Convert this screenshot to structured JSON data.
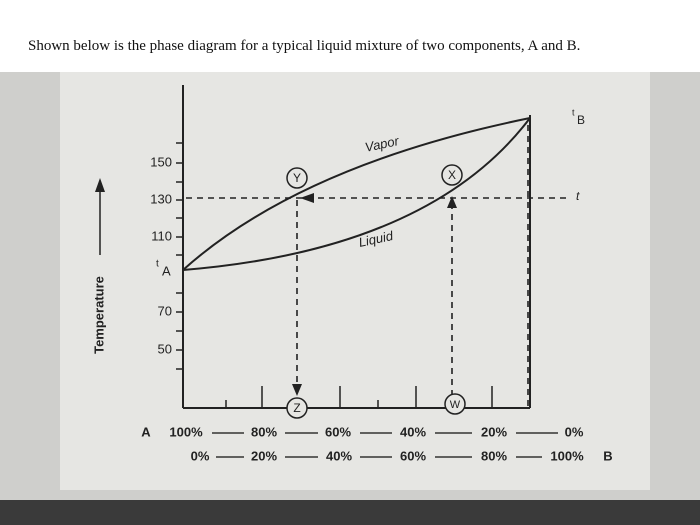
{
  "intro": "Shown below is the phase diagram for a typical liquid mixture of two components, A and B.",
  "diagram": {
    "y_axis_label": "Temperature",
    "y_ticks": [
      "150",
      "130",
      "110",
      "70",
      "50"
    ],
    "t_A": {
      "t": "t",
      "name": "A"
    },
    "t_B": {
      "t": "t",
      "name": "B"
    },
    "t_right": "t",
    "region_labels": {
      "vapor": "Vapor",
      "liquid": "Liquid"
    },
    "points": {
      "y": "Y",
      "x": "X",
      "z": "Z",
      "w": "W"
    },
    "composition_a": {
      "component": "A",
      "values": [
        "100%",
        "80%",
        "60%",
        "40%",
        "20%",
        "0%"
      ]
    },
    "composition_b": {
      "component": "B",
      "values": [
        "0%",
        "20%",
        "40%",
        "60%",
        "80%",
        "100%"
      ]
    }
  }
}
